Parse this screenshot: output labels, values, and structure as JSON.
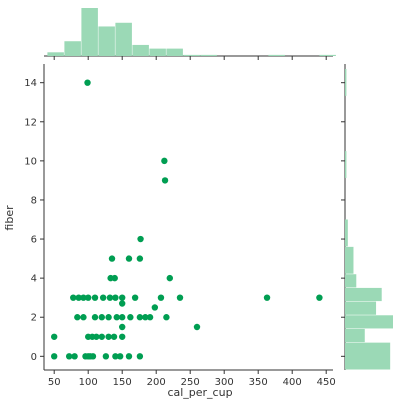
{
  "colors": {
    "point": "#009e52",
    "hist_fill": "#9bd9b6",
    "axis": "#333333",
    "background": "#ffffff"
  },
  "chart_data": {
    "type": "scatter",
    "subtype": "jointplot",
    "xlabel": "cal_per_cup",
    "ylabel": "fiber",
    "xlim": [
      35,
      460
    ],
    "ylim": [
      -0.7,
      14.7
    ],
    "xticks": [
      50,
      100,
      150,
      200,
      250,
      300,
      350,
      400,
      450
    ],
    "yticks": [
      0,
      2,
      4,
      6,
      8,
      10,
      12,
      14
    ],
    "grid": false,
    "points": [
      {
        "x": 50,
        "y": 0
      },
      {
        "x": 50,
        "y": 1
      },
      {
        "x": 72,
        "y": 0
      },
      {
        "x": 80,
        "y": 0
      },
      {
        "x": 78,
        "y": 3
      },
      {
        "x": 84,
        "y": 2
      },
      {
        "x": 86,
        "y": 3
      },
      {
        "x": 93,
        "y": 2
      },
      {
        "x": 93,
        "y": 3
      },
      {
        "x": 96,
        "y": 0
      },
      {
        "x": 99,
        "y": 14
      },
      {
        "x": 100,
        "y": 0
      },
      {
        "x": 100,
        "y": 1
      },
      {
        "x": 100,
        "y": 3
      },
      {
        "x": 103,
        "y": 0
      },
      {
        "x": 106,
        "y": 1
      },
      {
        "x": 107,
        "y": 0
      },
      {
        "x": 110,
        "y": 2
      },
      {
        "x": 110,
        "y": 3
      },
      {
        "x": 112,
        "y": 1
      },
      {
        "x": 120,
        "y": 1
      },
      {
        "x": 120,
        "y": 2
      },
      {
        "x": 122,
        "y": 3
      },
      {
        "x": 126,
        "y": 0
      },
      {
        "x": 130,
        "y": 1
      },
      {
        "x": 130,
        "y": 2
      },
      {
        "x": 132,
        "y": 3
      },
      {
        "x": 133,
        "y": 4
      },
      {
        "x": 135,
        "y": 5
      },
      {
        "x": 138,
        "y": 1
      },
      {
        "x": 139,
        "y": 4
      },
      {
        "x": 140,
        "y": 3
      },
      {
        "x": 140,
        "y": 0
      },
      {
        "x": 142,
        "y": 2
      },
      {
        "x": 147,
        "y": 0
      },
      {
        "x": 150,
        "y": 1
      },
      {
        "x": 150,
        "y": 1.5
      },
      {
        "x": 150,
        "y": 2
      },
      {
        "x": 150,
        "y": 2.7
      },
      {
        "x": 150,
        "y": 3
      },
      {
        "x": 160,
        "y": 0
      },
      {
        "x": 160,
        "y": 5
      },
      {
        "x": 162,
        "y": 2
      },
      {
        "x": 169,
        "y": 3
      },
      {
        "x": 176,
        "y": 5
      },
      {
        "x": 177,
        "y": 6
      },
      {
        "x": 176,
        "y": 0
      },
      {
        "x": 176,
        "y": 2
      },
      {
        "x": 184,
        "y": 2
      },
      {
        "x": 191,
        "y": 2
      },
      {
        "x": 198,
        "y": 2.5
      },
      {
        "x": 207,
        "y": 3
      },
      {
        "x": 212,
        "y": 10
      },
      {
        "x": 213,
        "y": 9
      },
      {
        "x": 215,
        "y": 2
      },
      {
        "x": 220,
        "y": 4
      },
      {
        "x": 235,
        "y": 3
      },
      {
        "x": 260,
        "y": 1.5
      },
      {
        "x": 363,
        "y": 3
      },
      {
        "x": 440,
        "y": 3
      }
    ],
    "x_histogram": {
      "bins": [
        [
          40,
          65
        ],
        [
          65,
          90
        ],
        [
          90,
          115
        ],
        [
          115,
          140
        ],
        [
          140,
          165
        ],
        [
          165,
          190
        ],
        [
          190,
          215
        ],
        [
          215,
          240
        ],
        [
          240,
          265
        ],
        [
          265,
          290
        ],
        [
          290,
          315
        ],
        [
          315,
          340
        ],
        [
          340,
          365
        ],
        [
          365,
          390
        ],
        [
          390,
          415
        ],
        [
          415,
          440
        ],
        [
          440,
          465
        ]
      ],
      "counts": [
        1,
        4,
        13,
        8,
        9,
        3,
        2,
        2,
        0.3,
        0.3,
        0,
        0,
        0,
        0.3,
        0,
        0,
        0.3
      ]
    },
    "y_histogram": {
      "bins": [
        [
          -0.7,
          0.7
        ],
        [
          0.7,
          1.4
        ],
        [
          1.4,
          2.1
        ],
        [
          2.1,
          2.8
        ],
        [
          2.8,
          3.5
        ],
        [
          3.5,
          4.2
        ],
        [
          4.2,
          5.6
        ],
        [
          5.6,
          7
        ],
        [
          9.1,
          10.5
        ],
        [
          13.3,
          14.7
        ]
      ],
      "counts": [
        16,
        7,
        17,
        11,
        13,
        4,
        3,
        1,
        0.5,
        0.5
      ]
    }
  }
}
